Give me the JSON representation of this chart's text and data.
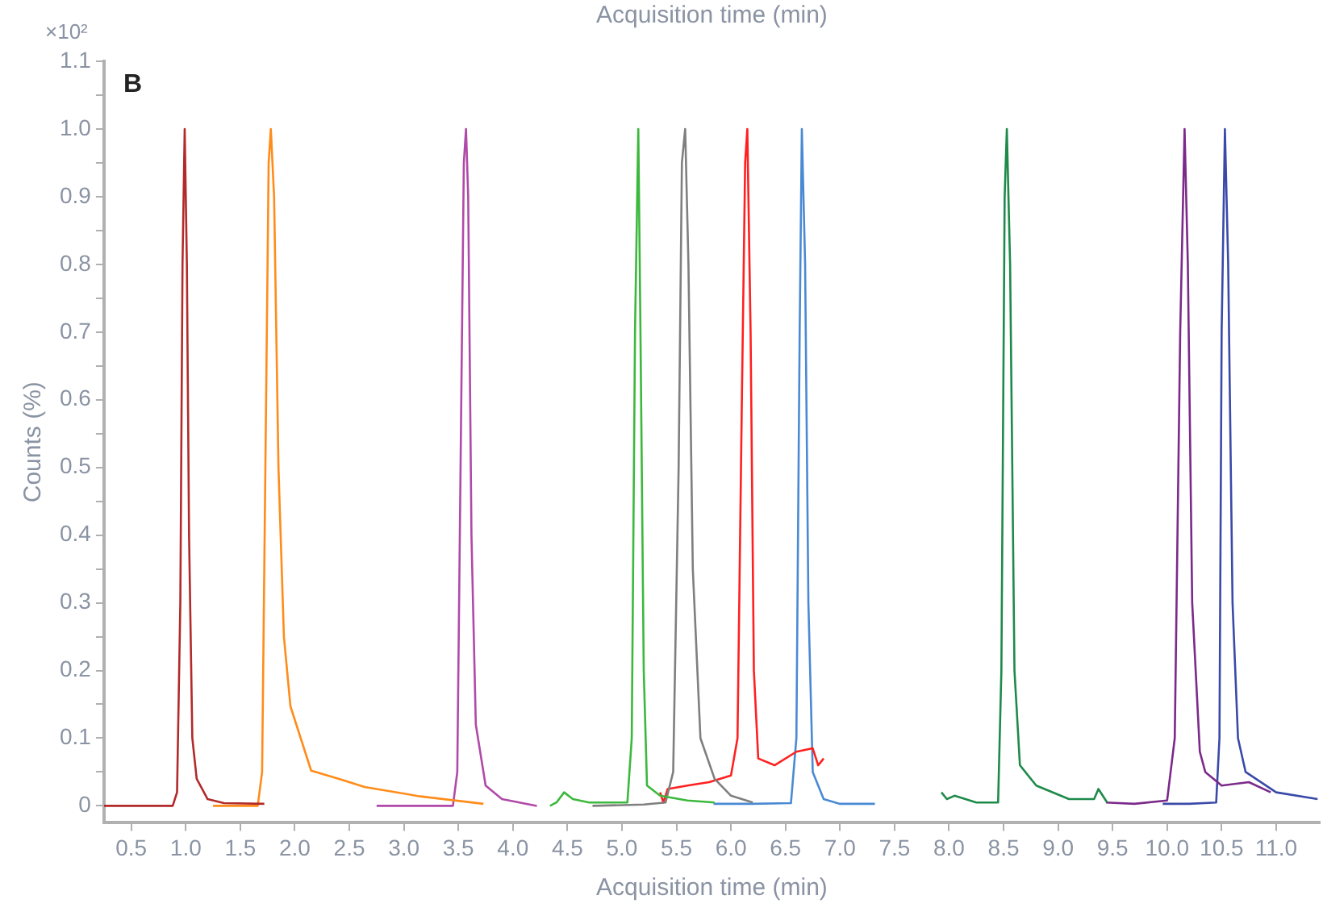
{
  "chart_data": {
    "type": "line",
    "xlabel": "Acquisition time (min)",
    "ylabel": "Counts (%)",
    "annotations": [
      "Acquisition time (min)",
      "×10²",
      "B"
    ],
    "xlim": [
      0.25,
      11.4
    ],
    "xticks": [
      {
        "value": 0.5,
        "label": "0.5"
      },
      {
        "value": 1,
        "label": "1.0"
      },
      {
        "value": 1.5,
        "label": "1.5"
      },
      {
        "value": 2,
        "label": "2.0"
      },
      {
        "value": 2.5,
        "label": "2.5"
      },
      {
        "value": 3,
        "label": "3.0"
      },
      {
        "value": 3.5,
        "label": "3.5"
      },
      {
        "value": 4,
        "label": "4.0"
      },
      {
        "value": 4.5,
        "label": "4.5"
      },
      {
        "value": 5,
        "label": "5.0"
      },
      {
        "value": 5.5,
        "label": "5.5"
      },
      {
        "value": 6,
        "label": "6.0"
      },
      {
        "value": 6.5,
        "label": "6.5"
      },
      {
        "value": 7,
        "label": "7.0"
      },
      {
        "value": 7.5,
        "label": "7.5"
      },
      {
        "value": 8,
        "label": "8.0"
      },
      {
        "value": 8.5,
        "label": "8.5"
      },
      {
        "value": 9,
        "label": "9.0"
      },
      {
        "value": 9.5,
        "label": "9.5"
      },
      {
        "value": 10,
        "label": "10.0"
      },
      {
        "value": 10.5,
        "label": "10.5"
      },
      {
        "value": 11,
        "label": "11.0"
      }
    ],
    "ylim": [
      -0.025,
      1.1
    ],
    "yticks": [
      0,
      {
        "value": 0.05,
        "label": null
      },
      {
        "value": 0.1,
        "label": "0.1"
      },
      {
        "value": 0.15,
        "label": null
      },
      {
        "value": 0.2,
        "label": "0.2"
      },
      {
        "value": 0.25,
        "label": null
      },
      {
        "value": 0.3,
        "label": "0.3"
      },
      {
        "value": 0.35,
        "label": null
      },
      {
        "value": 0.4,
        "label": "0.4"
      },
      {
        "value": 0.45,
        "label": null
      },
      {
        "value": 0.5,
        "label": "0.5"
      },
      {
        "value": 0.55,
        "label": null
      },
      {
        "value": 0.6,
        "label": "0.6"
      },
      {
        "value": 0.65,
        "label": null
      },
      {
        "value": 0.7,
        "label": "0.7"
      },
      {
        "value": 0.75,
        "label": null
      },
      {
        "value": 0.8,
        "label": "0.8"
      },
      {
        "value": 0.85,
        "label": null
      },
      {
        "value": 0.9,
        "label": "0.9"
      },
      {
        "value": 0.95,
        "label": null
      },
      {
        "value": 1,
        "label": "1.0"
      },
      {
        "value": 1.05,
        "label": null
      },
      {
        "value": 1.1,
        "label": "1.1"
      }
    ],
    "grid": false,
    "legend": false,
    "marker": "none",
    "line_style": "solid",
    "series": [
      {
        "color": "#b22a2a",
        "x": [
          0.25,
          0.88,
          0.92,
          0.95,
          0.97,
          0.99,
          1.01,
          1.03,
          1.06,
          1.1,
          1.2,
          1.35,
          1.72
        ],
        "values": [
          0,
          0,
          0.02,
          0.3,
          0.8,
          1.0,
          0.8,
          0.4,
          0.1,
          0.04,
          0.01,
          0.004,
          0.003
        ]
      },
      {
        "color": "#ff8c1a",
        "x": [
          1.25,
          1.66,
          1.7,
          1.73,
          1.76,
          1.78,
          1.81,
          1.85,
          1.9,
          1.96,
          2.15,
          2.4,
          2.64,
          3.15,
          3.73
        ],
        "values": [
          0,
          0,
          0.05,
          0.5,
          0.95,
          1.0,
          0.9,
          0.5,
          0.25,
          0.147,
          0.052,
          0.04,
          0.028,
          0.014,
          0.003
        ]
      },
      {
        "color": "#b04aa8",
        "x": [
          2.75,
          3.45,
          3.49,
          3.52,
          3.55,
          3.57,
          3.59,
          3.62,
          3.66,
          3.75,
          3.9,
          4.22
        ],
        "values": [
          0,
          0,
          0.05,
          0.5,
          0.95,
          1.0,
          0.9,
          0.4,
          0.12,
          0.03,
          0.01,
          0
        ]
      },
      {
        "color": "#3cb83c",
        "x": [
          4.34,
          4.4,
          4.47,
          4.55,
          4.7,
          5.05,
          5.09,
          5.12,
          5.15,
          5.17,
          5.2,
          5.23,
          5.35,
          5.6,
          5.85
        ],
        "values": [
          0,
          0.005,
          0.02,
          0.01,
          0.005,
          0.005,
          0.1,
          0.7,
          1.0,
          0.7,
          0.2,
          0.03,
          0.015,
          0.008,
          0.005
        ]
      },
      {
        "color": "#7f7f7f",
        "x": [
          4.73,
          5.2,
          5.4,
          5.47,
          5.52,
          5.55,
          5.58,
          5.61,
          5.65,
          5.72,
          5.85,
          6.0,
          6.2
        ],
        "values": [
          0,
          0.002,
          0.005,
          0.05,
          0.5,
          0.95,
          1.0,
          0.8,
          0.35,
          0.1,
          0.04,
          0.015,
          0.005
        ]
      },
      {
        "color": "#ff2020",
        "x": [
          5.35,
          5.38,
          5.42,
          5.6,
          5.8,
          6.0,
          6.06,
          6.1,
          6.13,
          6.15,
          6.18,
          6.21,
          6.25,
          6.4,
          6.6,
          6.75,
          6.8,
          6.85
        ],
        "values": [
          0.02,
          0.005,
          0.025,
          0.03,
          0.035,
          0.045,
          0.1,
          0.6,
          0.95,
          1.0,
          0.7,
          0.2,
          0.07,
          0.06,
          0.08,
          0.085,
          0.06,
          0.07
        ]
      },
      {
        "color": "#4a8ad4",
        "x": [
          5.84,
          6.2,
          6.55,
          6.6,
          6.63,
          6.65,
          6.68,
          6.71,
          6.75,
          6.85,
          7.0,
          7.32
        ],
        "values": [
          0.003,
          0.003,
          0.004,
          0.1,
          0.7,
          1.0,
          0.8,
          0.3,
          0.05,
          0.01,
          0.003,
          0.003
        ]
      },
      {
        "color": "#1e8a4a",
        "x": [
          7.93,
          7.98,
          8.05,
          8.15,
          8.25,
          8.45,
          8.48,
          8.51,
          8.53,
          8.56,
          8.6,
          8.65,
          8.8,
          9.1,
          9.33,
          9.37,
          9.45
        ],
        "values": [
          0.02,
          0.01,
          0.015,
          0.01,
          0.005,
          0.005,
          0.2,
          0.9,
          1.0,
          0.8,
          0.2,
          0.06,
          0.03,
          0.01,
          0.01,
          0.025,
          0.005
        ]
      },
      {
        "color": "#7b2a8a",
        "x": [
          9.44,
          9.7,
          10.0,
          10.07,
          10.12,
          10.16,
          10.19,
          10.23,
          10.3,
          10.35,
          10.5,
          10.75,
          10.95
        ],
        "values": [
          0.005,
          0.003,
          0.008,
          0.1,
          0.7,
          1.0,
          0.8,
          0.3,
          0.08,
          0.05,
          0.03,
          0.035,
          0.02
        ]
      },
      {
        "color": "#3a4aa8",
        "x": [
          9.96,
          10.2,
          10.45,
          10.48,
          10.5,
          10.53,
          10.56,
          10.6,
          10.65,
          10.72,
          11.0,
          11.38
        ],
        "values": [
          0.003,
          0.003,
          0.005,
          0.1,
          0.7,
          1.0,
          0.8,
          0.3,
          0.1,
          0.05,
          0.02,
          0.01
        ]
      }
    ]
  }
}
